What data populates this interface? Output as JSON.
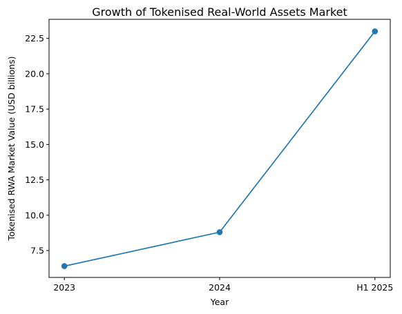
{
  "chart_data": {
    "type": "line",
    "title": "Growth of Tokenised Real-World Assets Market",
    "xlabel": "Year",
    "ylabel": "Tokenised RWA Market Value (USD billions)",
    "categories": [
      "2023",
      "2024",
      "H1 2025"
    ],
    "series": [
      {
        "values": [
          6.4,
          8.8,
          23.0
        ]
      }
    ],
    "ylim": [
      5.6,
      23.85
    ],
    "yticks": [
      7.5,
      10.0,
      12.5,
      15.0,
      17.5,
      20.0,
      22.5
    ],
    "ytick_labels": [
      "7.5",
      "10.0",
      "12.5",
      "15.0",
      "17.5",
      "20.0",
      "22.5"
    ],
    "grid": false,
    "legend": "none",
    "line_color": "#1f77b4",
    "marker": "circle"
  }
}
